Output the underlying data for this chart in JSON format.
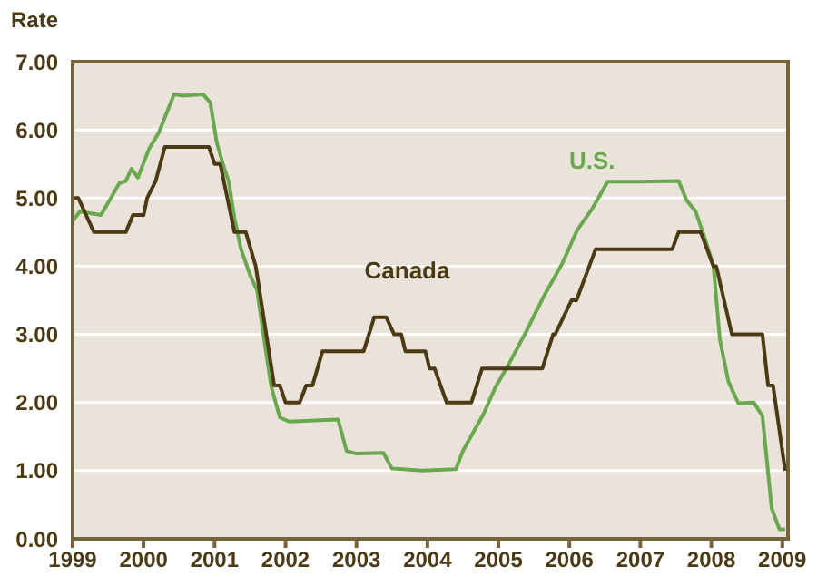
{
  "chart_data": {
    "type": "line",
    "ylabel": "Rate",
    "xlim": [
      1999,
      2009.08
    ],
    "xticks": [
      1999,
      2000,
      2001,
      2002,
      2003,
      2004,
      2005,
      2006,
      2007,
      2008,
      2009
    ],
    "ylim": [
      0,
      7
    ],
    "yticks": [
      {
        "value": 0,
        "label": "0.00"
      },
      {
        "value": 1,
        "label": "1.00"
      },
      {
        "value": 2,
        "label": "2.00"
      },
      {
        "value": 3,
        "label": "3.00"
      },
      {
        "value": 4,
        "label": "4.00"
      },
      {
        "value": 5,
        "label": "5.00"
      },
      {
        "value": 6,
        "label": "6.00"
      },
      {
        "value": 7,
        "label": "7.00"
      }
    ],
    "grid": "y",
    "marker": "none",
    "line_style": "solid",
    "series": [
      {
        "name": "U.S.",
        "color": "#6aa84f",
        "x": [
          1999.0,
          1999.1,
          1999.4,
          1999.55,
          1999.66,
          1999.75,
          1999.83,
          1999.92,
          2000.08,
          2000.21,
          2000.43,
          2000.56,
          2000.84,
          2000.94,
          2001.03,
          2001.12,
          2001.2,
          2001.28,
          2001.37,
          2001.5,
          2001.6,
          2001.71,
          2001.8,
          2001.92,
          2002.05,
          2002.48,
          2002.74,
          2002.86,
          2003.0,
          2003.38,
          2003.5,
          2003.93,
          2004.4,
          2004.5,
          2004.79,
          2004.96,
          2005.13,
          2005.38,
          2005.64,
          2005.9,
          2006.11,
          2006.32,
          2006.54,
          2006.97,
          2007.54,
          2007.65,
          2007.78,
          2007.9,
          2008.03,
          2008.12,
          2008.24,
          2008.38,
          2008.6,
          2008.72,
          2008.85,
          2008.96,
          2009.04
        ],
        "values": [
          4.66,
          4.8,
          4.75,
          5.02,
          5.22,
          5.25,
          5.43,
          5.3,
          5.73,
          5.95,
          6.52,
          6.5,
          6.52,
          6.4,
          5.82,
          5.49,
          5.24,
          4.71,
          4.26,
          3.87,
          3.64,
          2.85,
          2.23,
          1.78,
          1.72,
          1.74,
          1.75,
          1.29,
          1.25,
          1.26,
          1.03,
          1.0,
          1.02,
          1.29,
          1.83,
          2.23,
          2.53,
          3.02,
          3.56,
          4.04,
          4.53,
          4.84,
          5.24,
          5.24,
          5.25,
          4.97,
          4.8,
          4.44,
          4.0,
          2.93,
          2.31,
          1.99,
          2.0,
          1.8,
          0.45,
          0.14,
          0.14
        ]
      },
      {
        "name": "Canada",
        "color": "#4b3a14",
        "x": [
          1999.0,
          1999.08,
          1999.3,
          1999.75,
          1999.85,
          2000.0,
          2000.05,
          2000.17,
          2000.3,
          2000.92,
          2001.0,
          2001.08,
          2001.28,
          2001.44,
          2001.58,
          2001.84,
          2001.92,
          2002.0,
          2002.2,
          2002.29,
          2002.38,
          2002.52,
          2003.1,
          2003.25,
          2003.42,
          2003.53,
          2003.63,
          2003.69,
          2003.97,
          2004.03,
          2004.1,
          2004.27,
          2004.62,
          2004.77,
          2005.62,
          2005.77,
          2005.8,
          2006.03,
          2006.1,
          2006.37,
          2007.45,
          2007.54,
          2007.85,
          2008.03,
          2008.07,
          2008.29,
          2008.72,
          2008.8,
          2008.87,
          2009.04
        ],
        "values": [
          5.0,
          5.0,
          4.5,
          4.5,
          4.75,
          4.75,
          5.0,
          5.25,
          5.75,
          5.75,
          5.5,
          5.5,
          4.5,
          4.5,
          4.0,
          2.25,
          2.25,
          2.0,
          2.0,
          2.25,
          2.25,
          2.75,
          2.75,
          3.25,
          3.25,
          3.0,
          3.0,
          2.75,
          2.75,
          2.5,
          2.5,
          2.0,
          2.0,
          2.5,
          2.5,
          3.0,
          3.0,
          3.5,
          3.5,
          4.25,
          4.25,
          4.5,
          4.5,
          4.0,
          4.0,
          3.0,
          3.0,
          2.25,
          2.25,
          1.0
        ]
      }
    ]
  }
}
